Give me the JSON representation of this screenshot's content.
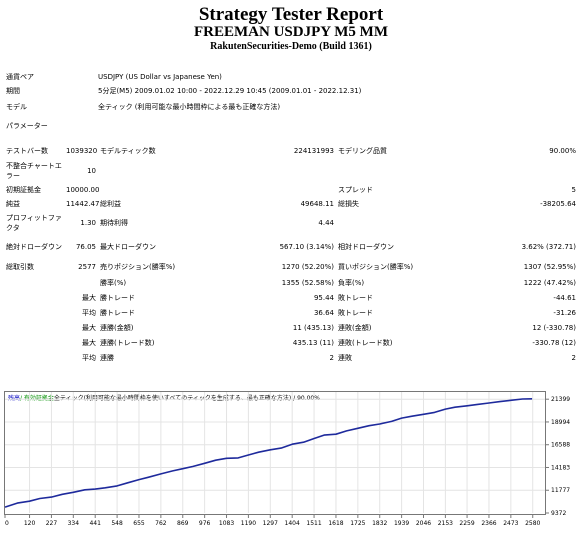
{
  "header": {
    "title": "Strategy Tester Report",
    "subtitle": "FREEMAN USDJPY M5 MM",
    "server": "RakutenSecurities-Demo (Build 1361)"
  },
  "info": [
    {
      "label": "通貨ペア",
      "value": "USDJPY (US Dollar vs Japanese Yen)"
    },
    {
      "label": "期間",
      "value": "5分足(M5) 2009.01.02 10:00 - 2022.12.29 10:45 (2009.01.01 - 2022.12.31)"
    },
    {
      "label": "モデル",
      "value": "全ティック (利用可能な最小時間枠による最も正確な方法)"
    },
    {
      "label": "パラメーター",
      "value": ""
    }
  ],
  "stats": {
    "bars_label": "テストバー数",
    "bars": "1039320",
    "ticks_label": "モデルティック数",
    "ticks": "224131993",
    "quality_label": "モデリング品質",
    "quality": "90.00%",
    "mismatch_label": "不整合チャートエラー",
    "mismatch": "10",
    "deposit_label": "初期証拠金",
    "deposit": "10000.00",
    "spread_label": "スプレッド",
    "spread": "5",
    "net_label": "純益",
    "net": "11442.47",
    "gross_profit_label": "総利益",
    "gross_profit": "49648.11",
    "gross_loss_label": "総損失",
    "gross_loss": "-38205.64",
    "pf_label": "プロフィットファクタ",
    "pf": "1.30",
    "expected_label": "期待利得",
    "expected": "4.44",
    "abs_dd_label": "絶対ドローダウン",
    "abs_dd": "76.05",
    "max_dd_label": "最大ドローダウン",
    "max_dd": "567.10 (3.14%)",
    "rel_dd_label": "相対ドローダウン",
    "rel_dd": "3.62% (372.71)",
    "trades_label": "総取引数",
    "trades": "2577",
    "short_label": "売りポジション(勝率%)",
    "short": "1270 (52.20%)",
    "long_label": "買いポジション(勝率%)",
    "long": "1307 (52.95%)",
    "win_label": "勝率(%)",
    "win": "1355 (52.58%)",
    "loss_label": "負率(%)",
    "loss": "1222 (47.42%)",
    "largest": "最大",
    "avg": "平均",
    "lw_label": "勝トレード",
    "lw": "95.44",
    "ll_label": "敗トレード",
    "ll": "-44.61",
    "aw_label": "勝トレード",
    "aw": "36.64",
    "al_label": "敗トレード",
    "al": "-31.26",
    "mcw_label": "連勝(金額)",
    "mcw": "11 (435.13)",
    "mcl_label": "連敗(金額)",
    "mcl": "12 (-330.78)",
    "mcp_label": "連勝(トレード数)",
    "mcp": "435.13 (11)",
    "mcll_label": "連敗(トレード数)",
    "mcll": "-330.78 (12)",
    "acw_label": "連勝",
    "acw": "2",
    "acl_label": "連敗",
    "acl": "2"
  },
  "chart_legend": {
    "balance": "残高",
    "equity": "/ 有効証拠金",
    "desc": "/ 全ティック(利用可能な最小時間枠を使いすべてのティックを生成する、最も正確な方法) / 90.00%"
  },
  "chart_data": {
    "type": "line",
    "xticks": [
      "0",
      "120",
      "227",
      "334",
      "441",
      "548",
      "655",
      "762",
      "869",
      "976",
      "1083",
      "1190",
      "1297",
      "1404",
      "1511",
      "1618",
      "1725",
      "1832",
      "1939",
      "2046",
      "2153",
      "2259",
      "2366",
      "2473",
      "2580"
    ],
    "yticks": [
      "9372",
      "11777",
      "14183",
      "16588",
      "18994",
      "21399"
    ],
    "xlim": [
      0,
      2640
    ],
    "ylim": [
      9372,
      22160
    ],
    "series": [
      {
        "x": [
          0,
          60,
          120,
          170,
          227,
          280,
          334,
          390,
          441,
          490,
          548,
          600,
          655,
          700,
          762,
          820,
          869,
          920,
          976,
          1030,
          1083,
          1140,
          1190,
          1240,
          1297,
          1350,
          1404,
          1460,
          1511,
          1560,
          1618,
          1670,
          1725,
          1780,
          1832,
          1890,
          1939,
          1990,
          2046,
          2100,
          2153,
          2200,
          2259,
          2310,
          2366,
          2420,
          2473,
          2530,
          2577
        ],
        "values": [
          10000,
          10420,
          10620,
          10900,
          11050,
          11350,
          11560,
          11820,
          11900,
          12040,
          12240,
          12560,
          12900,
          13150,
          13500,
          13820,
          14050,
          14300,
          14620,
          14950,
          15150,
          15200,
          15500,
          15800,
          16050,
          16230,
          16640,
          16850,
          17250,
          17600,
          17700,
          18050,
          18320,
          18600,
          18780,
          19050,
          19400,
          19600,
          19800,
          20000,
          20350,
          20550,
          20700,
          20850,
          21000,
          21150,
          21280,
          21420,
          21442
        ]
      }
    ]
  }
}
